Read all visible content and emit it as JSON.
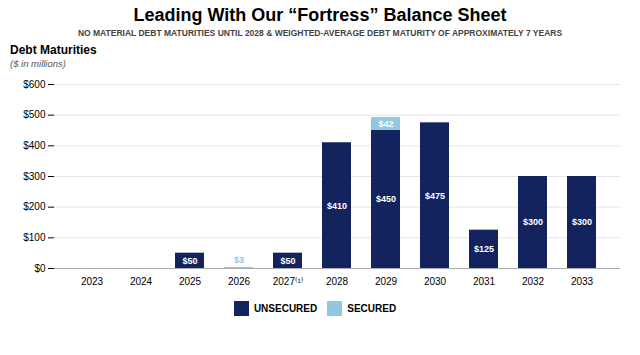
{
  "chart_data": {
    "type": "bar",
    "title": "Leading With Our “Fortress” Balance Sheet",
    "subtitle": "NO MATERIAL DEBT MATURITIES UNTIL 2028 & WEIGHTED-AVERAGE DEBT MATURITY OF APPROXIMATELY 7 YEARS",
    "annotations": [
      "Debt Maturities",
      "($ in millions)"
    ],
    "categories": [
      "2023",
      "2024",
      "2025",
      "2026",
      "2027⁽¹⁾",
      "2028",
      "2029",
      "2030",
      "2031",
      "2032",
      "2033"
    ],
    "series": [
      {
        "name": "UNSECURED",
        "color": "#12235e",
        "values": [
          0,
          0,
          50,
          0,
          50,
          410,
          450,
          475,
          125,
          300,
          300
        ],
        "value_labels": [
          null,
          null,
          "$50",
          null,
          "$50",
          "$410",
          "$450",
          "$475",
          "$125",
          "$300",
          "$300"
        ]
      },
      {
        "name": "SECURED",
        "color": "#93c6e0",
        "values": [
          0,
          0,
          0,
          3,
          0,
          0,
          42,
          0,
          0,
          0,
          0
        ],
        "value_labels": [
          null,
          null,
          null,
          "$3",
          null,
          null,
          "$42",
          null,
          null,
          null,
          null
        ]
      }
    ],
    "stacked": true,
    "data_labels": true,
    "ylim": [
      0,
      600
    ],
    "yticks": [
      {
        "value": 0,
        "label": "$0"
      },
      {
        "value": 100,
        "label": "$100"
      },
      {
        "value": 200,
        "label": "$200"
      },
      {
        "value": 300,
        "label": "$300"
      },
      {
        "value": 400,
        "label": "$400"
      },
      {
        "value": 500,
        "label": "$500"
      },
      {
        "value": 600,
        "label": "$600"
      }
    ],
    "grid": true,
    "legend": "bottom"
  }
}
